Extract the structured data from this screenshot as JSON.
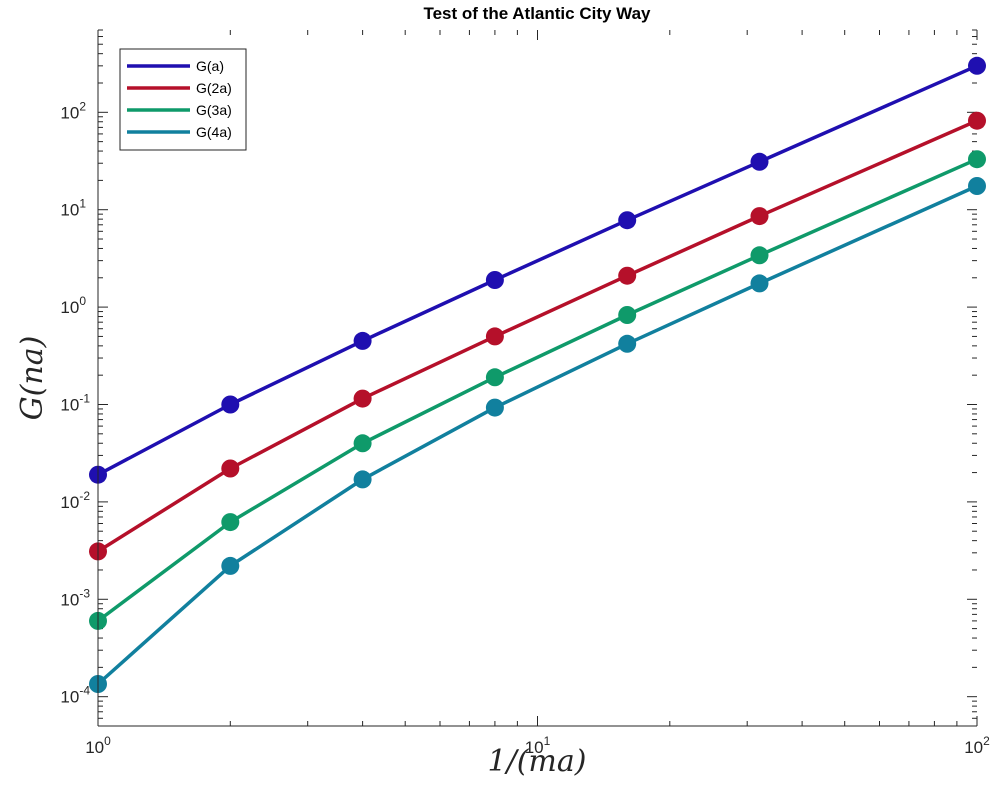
{
  "chart_data": {
    "type": "line",
    "title": "Test of the Atlantic City Way",
    "xlabel": "1/(ma)",
    "ylabel": "G(na)",
    "xscale": "log",
    "yscale": "log",
    "xlim": [
      1,
      100
    ],
    "ylim": [
      5e-05,
      700
    ],
    "x": [
      1,
      2,
      4,
      8,
      16,
      32,
      100
    ],
    "series": [
      {
        "name": "G(a)",
        "color": "#1f0fb0",
        "values": [
          0.019,
          0.1,
          0.45,
          1.9,
          7.8,
          31,
          300
        ]
      },
      {
        "name": "G(2a)",
        "color": "#b5102a",
        "values": [
          0.0031,
          0.022,
          0.115,
          0.5,
          2.1,
          8.6,
          82
        ]
      },
      {
        "name": "G(3a)",
        "color": "#0f9a6a",
        "values": [
          0.0006,
          0.0062,
          0.04,
          0.19,
          0.83,
          3.4,
          33
        ]
      },
      {
        "name": "G(4a)",
        "color": "#11809e",
        "values": [
          0.000135,
          0.0022,
          0.017,
          0.093,
          0.42,
          1.75,
          17.5
        ]
      }
    ],
    "x_ticks": [
      {
        "value": 1,
        "base": "10",
        "exp": "0"
      },
      {
        "value": 10,
        "base": "10",
        "exp": "1"
      },
      {
        "value": 100,
        "base": "10",
        "exp": "2"
      }
    ],
    "y_ticks": [
      {
        "value": 0.0001,
        "base": "10",
        "exp": "-4"
      },
      {
        "value": 0.001,
        "base": "10",
        "exp": "-3"
      },
      {
        "value": 0.01,
        "base": "10",
        "exp": "-2"
      },
      {
        "value": 0.1,
        "base": "10",
        "exp": "-1"
      },
      {
        "value": 1,
        "base": "10",
        "exp": "0"
      },
      {
        "value": 10,
        "base": "10",
        "exp": "1"
      },
      {
        "value": 100,
        "base": "10",
        "exp": "2"
      }
    ],
    "grid": false,
    "legend_position": "top-left"
  }
}
